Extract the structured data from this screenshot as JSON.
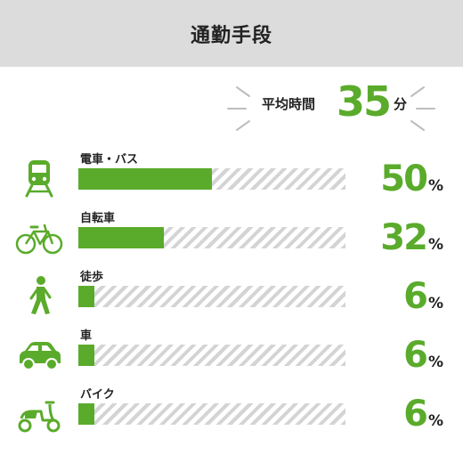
{
  "header": {
    "title": "通勤手段"
  },
  "average": {
    "label": "平均時間",
    "value": "35",
    "unit": "分"
  },
  "colors": {
    "accent": "#5aab2b",
    "track_stripe": "#d4d4d4",
    "header_bg": "#dcdcdc"
  },
  "chart_data": {
    "type": "bar",
    "orientation": "horizontal",
    "title": "通勤手段",
    "categories": [
      "電車・バス",
      "自転車",
      "徒歩",
      "車",
      "バイク"
    ],
    "icons": [
      "train-icon",
      "bicycle-icon",
      "walking-person-icon",
      "car-icon",
      "scooter-icon"
    ],
    "values": [
      50,
      32,
      6,
      6,
      6
    ],
    "display_values": [
      "50",
      "32",
      "6",
      "6",
      "6"
    ],
    "unit": "%",
    "xlim": [
      0,
      100
    ],
    "grid": false
  }
}
